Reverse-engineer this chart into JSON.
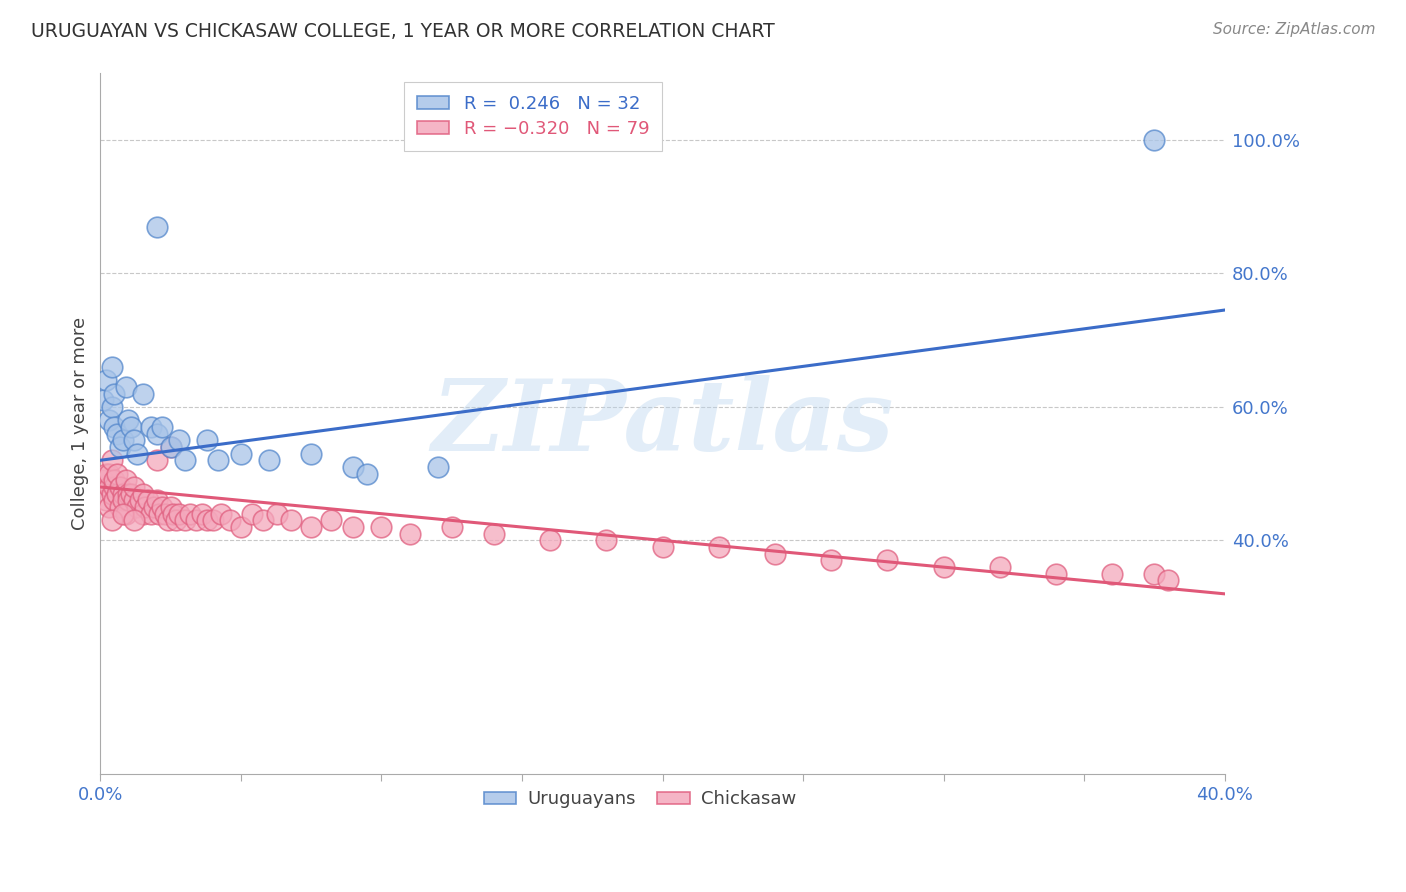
{
  "title": "URUGUAYAN VS CHICKASAW COLLEGE, 1 YEAR OR MORE CORRELATION CHART",
  "source": "Source: ZipAtlas.com",
  "ylabel": "College, 1 year or more",
  "xlim": [
    0.0,
    0.4
  ],
  "ylim": [
    0.05,
    1.1
  ],
  "yticks_right": [
    0.4,
    0.6,
    0.8,
    1.0
  ],
  "ytick_labels_right": [
    "40.0%",
    "60.0%",
    "80.0%",
    "100.0%"
  ],
  "watermark": "ZIPatlas",
  "blue_color": "#A8C4E8",
  "pink_color": "#F4A8BC",
  "blue_edge_color": "#5588CC",
  "pink_edge_color": "#E06080",
  "blue_line_color": "#3B6CC8",
  "pink_line_color": "#E05878",
  "blue_line_x": [
    0.0,
    0.4
  ],
  "blue_line_y": [
    0.52,
    0.745
  ],
  "pink_line_x": [
    0.0,
    0.4
  ],
  "pink_line_y": [
    0.48,
    0.32
  ],
  "uruguayan_x": [
    0.001,
    0.002,
    0.003,
    0.004,
    0.004,
    0.005,
    0.005,
    0.006,
    0.007,
    0.008,
    0.009,
    0.01,
    0.011,
    0.012,
    0.013,
    0.015,
    0.018,
    0.02,
    0.022,
    0.025,
    0.028,
    0.03,
    0.038,
    0.042,
    0.05,
    0.06,
    0.075,
    0.09,
    0.095,
    0.12,
    0.02,
    0.375
  ],
  "uruguayan_y": [
    0.61,
    0.64,
    0.58,
    0.6,
    0.66,
    0.57,
    0.62,
    0.56,
    0.54,
    0.55,
    0.63,
    0.58,
    0.57,
    0.55,
    0.53,
    0.62,
    0.57,
    0.56,
    0.57,
    0.54,
    0.55,
    0.52,
    0.55,
    0.52,
    0.53,
    0.52,
    0.53,
    0.51,
    0.5,
    0.51,
    0.87,
    1.0
  ],
  "chickasaw_x": [
    0.001,
    0.002,
    0.002,
    0.003,
    0.003,
    0.003,
    0.004,
    0.004,
    0.005,
    0.005,
    0.005,
    0.006,
    0.006,
    0.007,
    0.007,
    0.008,
    0.008,
    0.009,
    0.009,
    0.01,
    0.01,
    0.011,
    0.012,
    0.012,
    0.013,
    0.014,
    0.015,
    0.015,
    0.016,
    0.017,
    0.018,
    0.019,
    0.02,
    0.021,
    0.022,
    0.023,
    0.024,
    0.025,
    0.026,
    0.027,
    0.028,
    0.03,
    0.032,
    0.034,
    0.036,
    0.038,
    0.04,
    0.043,
    0.046,
    0.05,
    0.054,
    0.058,
    0.063,
    0.068,
    0.075,
    0.082,
    0.09,
    0.1,
    0.11,
    0.125,
    0.14,
    0.16,
    0.18,
    0.2,
    0.22,
    0.24,
    0.26,
    0.28,
    0.3,
    0.32,
    0.34,
    0.36,
    0.375,
    0.38,
    0.004,
    0.008,
    0.012,
    0.02,
    0.025
  ],
  "chickasaw_y": [
    0.49,
    0.5,
    0.46,
    0.48,
    0.5,
    0.45,
    0.47,
    0.52,
    0.48,
    0.46,
    0.49,
    0.47,
    0.5,
    0.48,
    0.45,
    0.47,
    0.46,
    0.49,
    0.44,
    0.47,
    0.46,
    0.47,
    0.46,
    0.48,
    0.45,
    0.46,
    0.47,
    0.44,
    0.45,
    0.46,
    0.44,
    0.45,
    0.46,
    0.44,
    0.45,
    0.44,
    0.43,
    0.45,
    0.44,
    0.43,
    0.44,
    0.43,
    0.44,
    0.43,
    0.44,
    0.43,
    0.43,
    0.44,
    0.43,
    0.42,
    0.44,
    0.43,
    0.44,
    0.43,
    0.42,
    0.43,
    0.42,
    0.42,
    0.41,
    0.42,
    0.41,
    0.4,
    0.4,
    0.39,
    0.39,
    0.38,
    0.37,
    0.37,
    0.36,
    0.36,
    0.35,
    0.35,
    0.35,
    0.34,
    0.43,
    0.44,
    0.43,
    0.52,
    0.54
  ],
  "background_color": "#FFFFFF",
  "grid_color": "#C8C8C8"
}
